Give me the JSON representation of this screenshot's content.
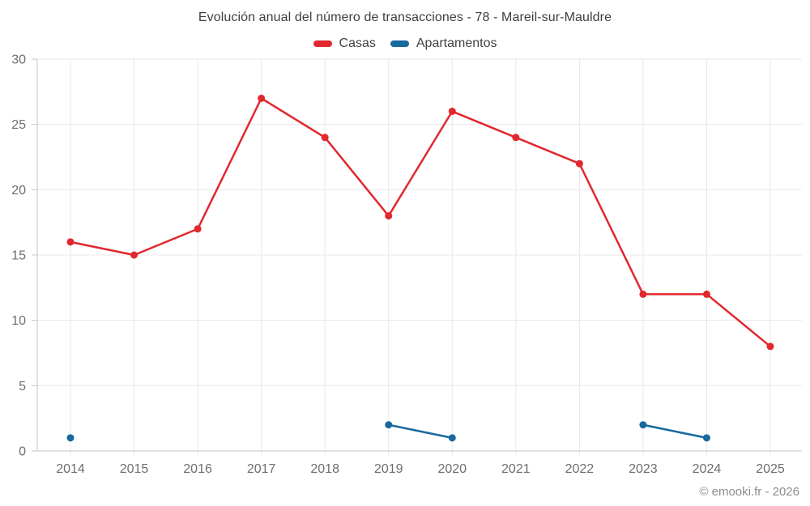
{
  "title": "Evolución anual del número de transacciones - 78 - Mareil-sur-Mauldre",
  "attribution": "© emooki.fr - 2026",
  "legend": [
    {
      "label": "Casas",
      "color": "#e0282e"
    },
    {
      "label": "Apartamentos",
      "color": "#17699e"
    }
  ],
  "chart_data": {
    "type": "line",
    "title": "Evolución anual del número de transacciones - 78 - Mareil-sur-Mauldre",
    "x": [
      2014,
      2015,
      2016,
      2017,
      2018,
      2019,
      2020,
      2021,
      2022,
      2023,
      2024,
      2025
    ],
    "series": [
      {
        "name": "Casas",
        "color": "#e0282e",
        "values": [
          16,
          15,
          17,
          27,
          24,
          18,
          26,
          24,
          22,
          12,
          12,
          8
        ]
      },
      {
        "name": "Apartamentos",
        "color": "#17699e",
        "values": [
          1,
          null,
          null,
          null,
          null,
          2,
          1,
          null,
          null,
          2,
          1,
          null
        ]
      }
    ],
    "xlabel": "",
    "ylabel": "",
    "ylim": [
      0,
      30
    ],
    "yticks": [
      0,
      5,
      10,
      15,
      20,
      25,
      30
    ],
    "grid": true,
    "legend_position": "top",
    "colors": {
      "grid": "#e8e8e8",
      "axis": "#c6c6c6",
      "tick_label": "#6e6e6e"
    }
  }
}
